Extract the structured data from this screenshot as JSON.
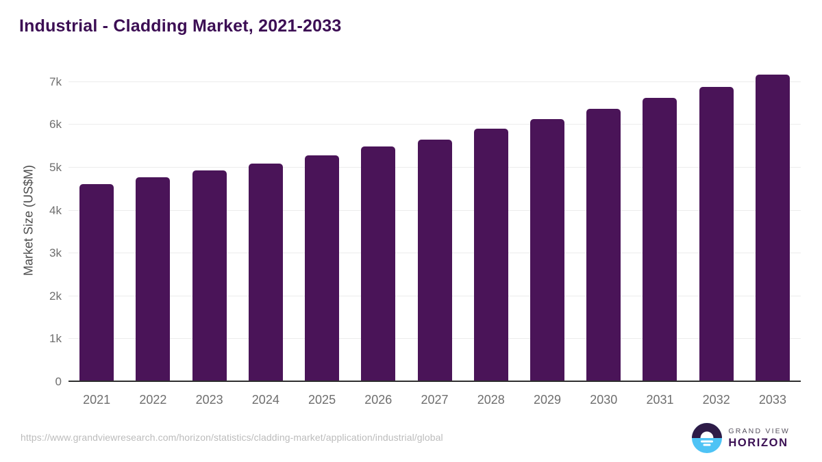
{
  "title": "Industrial - Cladding Market, 2021-2033",
  "chart_data": {
    "type": "bar",
    "title": "Industrial - Cladding Market, 2021-2033",
    "categories": [
      "2021",
      "2022",
      "2023",
      "2024",
      "2025",
      "2026",
      "2027",
      "2028",
      "2029",
      "2030",
      "2031",
      "2032",
      "2033"
    ],
    "values": [
      4580,
      4740,
      4910,
      5060,
      5250,
      5460,
      5620,
      5880,
      6100,
      6340,
      6590,
      6850,
      7140
    ],
    "unit": "US$M",
    "xlabel": "",
    "ylabel": "Market Size (US$M)",
    "ylim": [
      0,
      7350
    ],
    "ytick_values": [
      0,
      1000,
      2000,
      3000,
      4000,
      5000,
      6000,
      7000
    ],
    "ytick_labels": [
      "0",
      "1k",
      "2k",
      "3k",
      "4k",
      "5k",
      "6k",
      "7k"
    ],
    "grid": "horizontal",
    "legend": "none",
    "bar_color": "#4a1458"
  },
  "colors": {
    "background": "#ffffff",
    "title_text": "#3c0e54",
    "bar": "#4a1458",
    "axis_title": "#4c4c4c",
    "tick_text": "#6e6e6e",
    "gridline": "#ececec",
    "axis_line": "#2e2e2e",
    "source_text": "#bcbcbc"
  },
  "footer": {
    "source_url": "https://www.grandviewresearch.com/horizon/statistics/cladding-market/application/industrial/global",
    "logo": {
      "line1": "GRAND VIEW",
      "line2": "HORIZON",
      "icon": "sunrise-circle-icon",
      "icon_dark": "#2e1b47",
      "icon_blue": "#4ec3f5"
    }
  }
}
